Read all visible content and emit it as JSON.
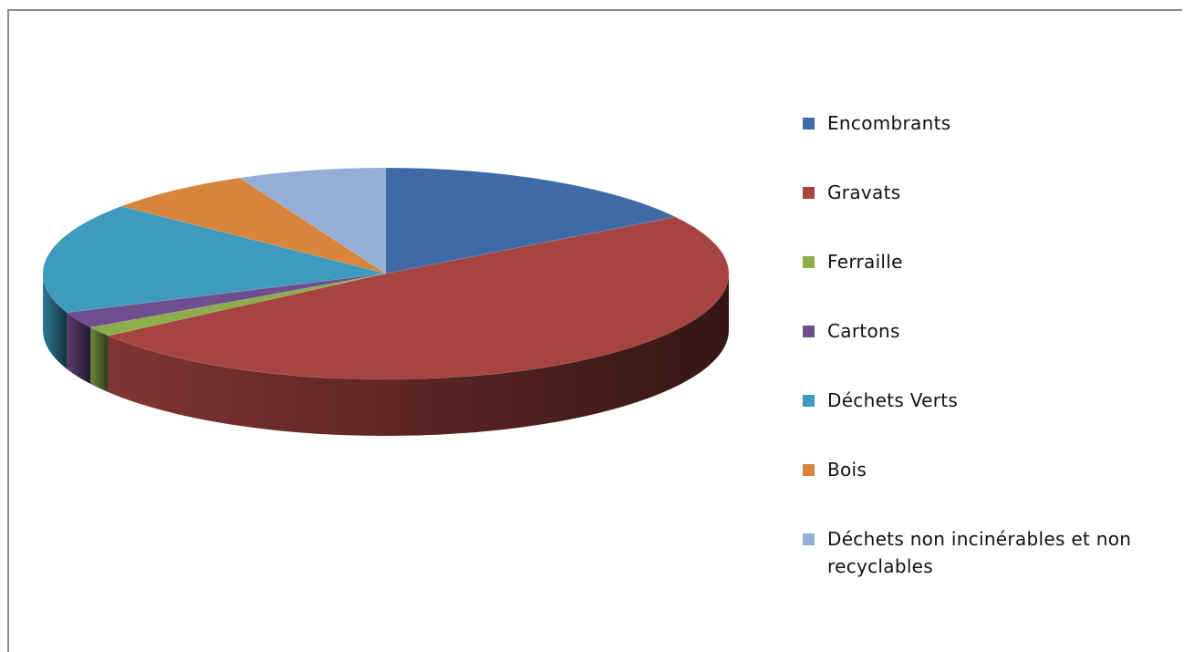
{
  "chart_data": {
    "type": "pie",
    "style": "3d",
    "legend_position": "right",
    "categories": [
      "Encombrants",
      "Gravats",
      "Ferraille",
      "Cartons",
      "Déchets Verts",
      "Bois",
      "Déchets non incinérables et non recyclables"
    ],
    "values": [
      16,
      49,
      1.5,
      2.5,
      17,
      7,
      7
    ],
    "colors": [
      "#3F6AA8",
      "#A54441",
      "#8BAE4B",
      "#6F4E8F",
      "#3E9BBE",
      "#D9843C",
      "#94AED6"
    ]
  }
}
